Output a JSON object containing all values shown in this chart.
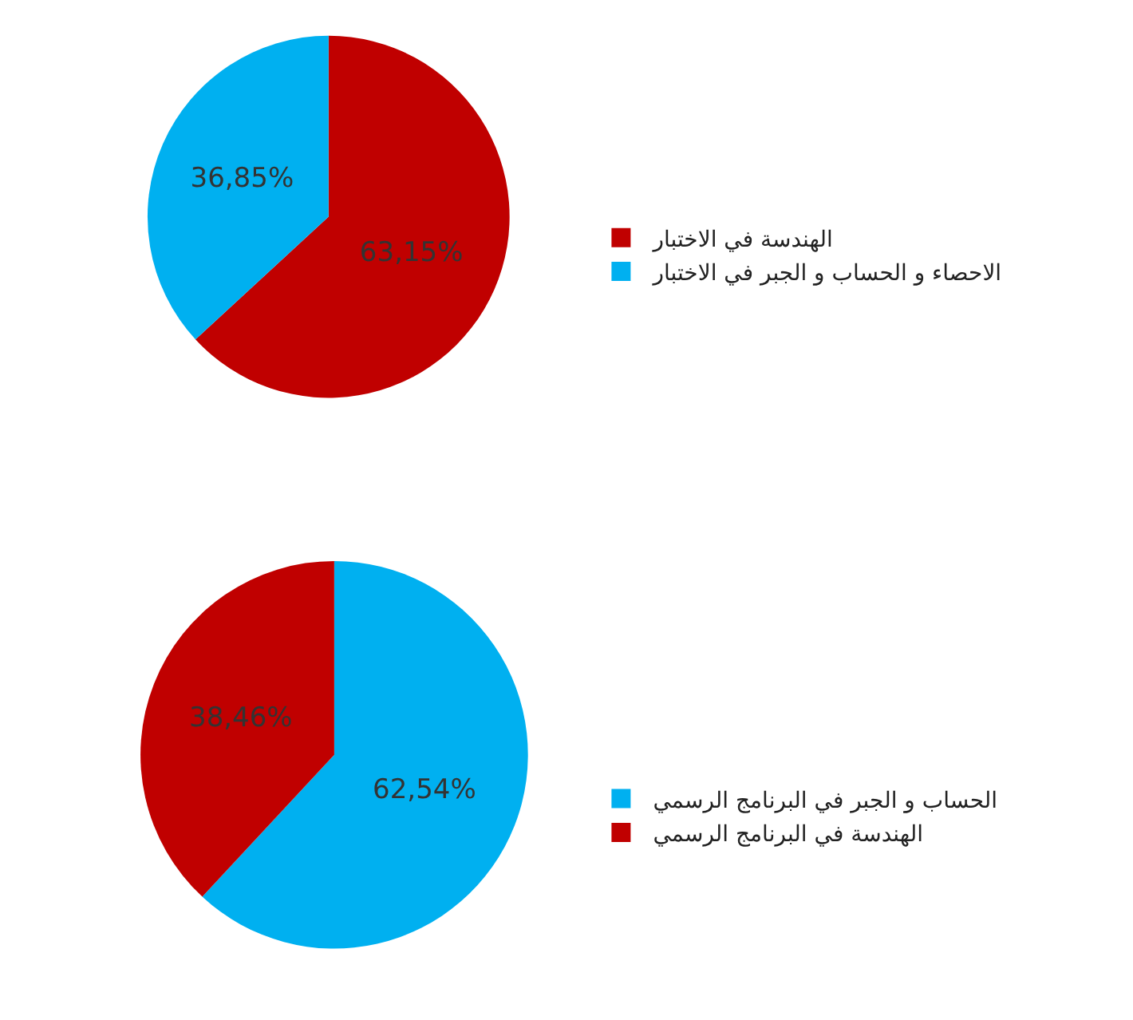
{
  "chart_data": [
    {
      "type": "pie",
      "categories": [
        "الهندسة في الاختبار",
        "الاحصاء و الحساب و الجبر في الاختبار"
      ],
      "values": [
        63.15,
        36.85
      ],
      "colors": [
        "#c00000",
        "#00b0f0"
      ],
      "value_labels": [
        "63,15%",
        "36,85%"
      ],
      "legend": "right"
    },
    {
      "type": "pie",
      "categories": [
        "الحساب و الجبر في البرنامج الرسمي",
        "الهندسة في البرنامج الرسمي"
      ],
      "values": [
        62.54,
        38.46
      ],
      "colors": [
        "#00b0f0",
        "#c00000"
      ],
      "value_labels": [
        "62,54%",
        "38,46%"
      ],
      "legend": "right"
    }
  ]
}
